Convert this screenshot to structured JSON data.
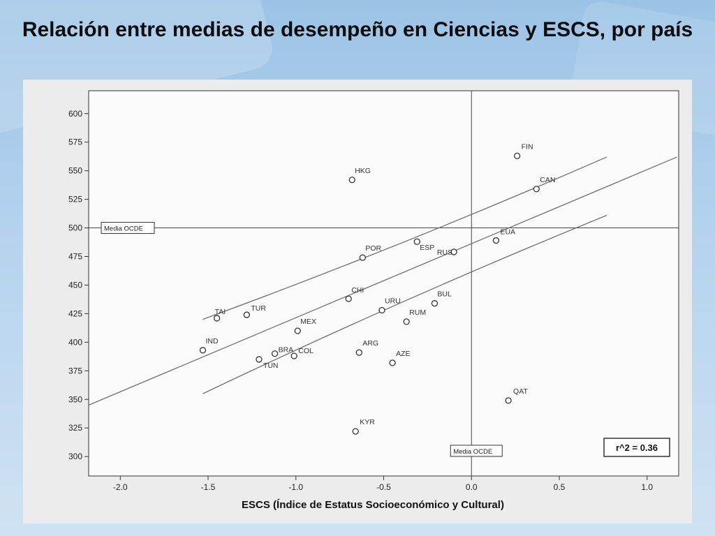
{
  "slide": {
    "title": "Relación entre medias de desempeño en Ciencias y ESCS, por país"
  },
  "chart_data": {
    "type": "scatter",
    "title": "",
    "xlabel": "ESCS (Índice de Estatus Socioeconómico y Cultural)",
    "ylabel": "",
    "xlim": [
      -2.18,
      1.18
    ],
    "ylim": [
      283,
      620
    ],
    "xticks": [
      -2.0,
      -1.5,
      -1.0,
      -0.5,
      0.0,
      0.5,
      1.0
    ],
    "xtick_labels": [
      "-2.0",
      "-1.5",
      "-1.0",
      "-0.5",
      "0.0",
      "0.5",
      "1.0"
    ],
    "yticks": [
      600,
      575,
      550,
      525,
      500,
      475,
      450,
      425,
      400,
      375,
      350,
      325,
      300
    ],
    "yticks_labels": [
      "600",
      "575",
      "550",
      "525",
      "500",
      "475",
      "450",
      "425",
      "400",
      "375",
      "350",
      "325",
      "300"
    ],
    "grid": false,
    "reference_lines": {
      "x": 0.0,
      "y": 500,
      "x_label": "Media OCDE",
      "y_label": "Media OCDE"
    },
    "points": [
      {
        "label": "FIN",
        "x": 0.26,
        "y": 563
      },
      {
        "label": "HKG",
        "x": -0.68,
        "y": 542
      },
      {
        "label": "CAN",
        "x": 0.37,
        "y": 534
      },
      {
        "label": "EUA",
        "x": 0.14,
        "y": 489
      },
      {
        "label": "ESP",
        "x": -0.31,
        "y": 488
      },
      {
        "label": "RUS",
        "x": -0.1,
        "y": 479
      },
      {
        "label": "POR",
        "x": -0.62,
        "y": 474
      },
      {
        "label": "CHI",
        "x": -0.7,
        "y": 438
      },
      {
        "label": "BUL",
        "x": -0.21,
        "y": 434
      },
      {
        "label": "URU",
        "x": -0.51,
        "y": 428
      },
      {
        "label": "TUR",
        "x": -1.28,
        "y": 424
      },
      {
        "label": "TAI",
        "x": -1.45,
        "y": 421
      },
      {
        "label": "RUM",
        "x": -0.37,
        "y": 418
      },
      {
        "label": "MEX",
        "x": -0.99,
        "y": 410
      },
      {
        "label": "IND",
        "x": -1.53,
        "y": 393
      },
      {
        "label": "ARG",
        "x": -0.64,
        "y": 391
      },
      {
        "label": "BRA",
        "x": -1.12,
        "y": 390
      },
      {
        "label": "COL",
        "x": -1.01,
        "y": 388
      },
      {
        "label": "TUN",
        "x": -1.21,
        "y": 385
      },
      {
        "label": "AZE",
        "x": -0.45,
        "y": 382
      },
      {
        "label": "QAT",
        "x": 0.21,
        "y": 349
      },
      {
        "label": "KYR",
        "x": -0.66,
        "y": 322
      }
    ],
    "regression": {
      "fit": [
        {
          "x": -2.18,
          "y": 345
        },
        {
          "x": 1.17,
          "y": 562
        }
      ],
      "upper": [
        {
          "x": -1.53,
          "y": 420
        },
        {
          "x": 0.77,
          "y": 562
        }
      ],
      "lower": [
        {
          "x": -1.53,
          "y": 355
        },
        {
          "x": 0.77,
          "y": 511
        }
      ]
    },
    "r2_label": "r^2 = 0.36"
  }
}
